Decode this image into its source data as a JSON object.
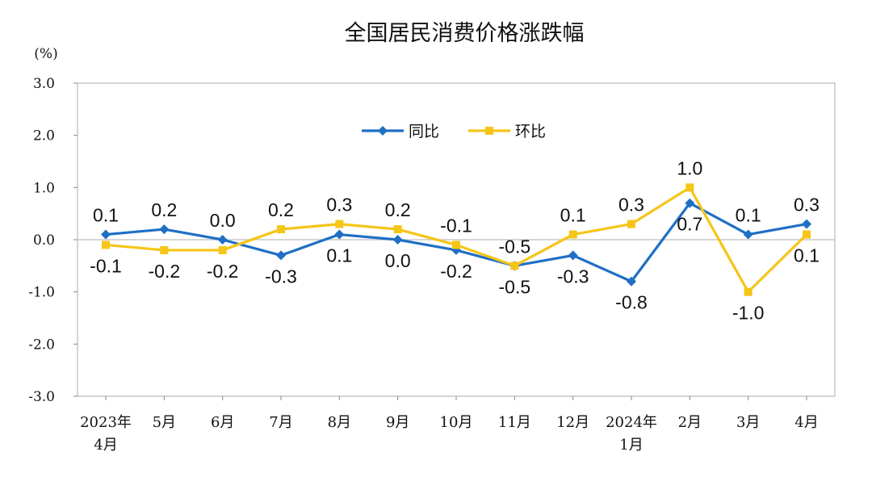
{
  "chart_data": {
    "type": "line",
    "title": "全国居民消费价格涨跌幅",
    "unit": "(%)",
    "categories": [
      [
        "2023年",
        "4月"
      ],
      [
        "5月"
      ],
      [
        "6月"
      ],
      [
        "7月"
      ],
      [
        "8月"
      ],
      [
        "9月"
      ],
      [
        "10月"
      ],
      [
        "11月"
      ],
      [
        "12月"
      ],
      [
        "2024年",
        "1月"
      ],
      [
        "2月"
      ],
      [
        "3月"
      ],
      [
        "4月"
      ]
    ],
    "ylim": [
      -3.0,
      3.0
    ],
    "yticks": [
      "3.0",
      "2.0",
      "1.0",
      "0.0",
      "-1.0",
      "-2.0",
      "-3.0"
    ],
    "ytick_values": [
      3.0,
      2.0,
      1.0,
      0.0,
      -1.0,
      -2.0,
      -3.0
    ],
    "grid": false,
    "legend_position": "top-center",
    "series": [
      {
        "name": "同比",
        "color": "#1f6fc5",
        "marker": "diamond",
        "values": [
          0.1,
          0.2,
          0.0,
          -0.3,
          0.1,
          0.0,
          -0.2,
          -0.5,
          -0.3,
          -0.8,
          0.7,
          0.1,
          0.3
        ],
        "labels": [
          "0.1",
          "0.2",
          "0.0",
          "-0.3",
          "0.1",
          "0.0",
          "-0.2",
          "-0.5",
          "-0.3",
          "-0.8",
          "0.7",
          "0.1",
          "0.3"
        ],
        "label_side": [
          "above",
          "above",
          "above",
          "below",
          "below",
          "below",
          "below",
          "below",
          "below",
          "below",
          "below",
          "above",
          "above"
        ]
      },
      {
        "name": "环比",
        "color": "#f5c518",
        "marker": "square",
        "values": [
          -0.1,
          -0.2,
          -0.2,
          0.2,
          0.3,
          0.2,
          -0.1,
          -0.5,
          0.1,
          0.3,
          1.0,
          -1.0,
          0.1
        ],
        "labels": [
          "-0.1",
          "-0.2",
          "-0.2",
          "0.2",
          "0.3",
          "0.2",
          "-0.1",
          "-0.5",
          "0.1",
          "0.3",
          "1.0",
          "-1.0",
          "0.1"
        ],
        "label_side": [
          "below",
          "below",
          "below",
          "above",
          "above",
          "above",
          "above",
          "above",
          "above",
          "above",
          "above",
          "below",
          "below"
        ]
      }
    ]
  }
}
